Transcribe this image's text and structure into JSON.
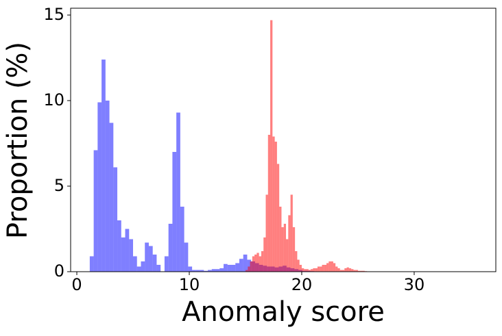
{
  "chart_data": {
    "type": "histogram",
    "xlabel": "Anomaly score",
    "ylabel": "Proportion (%)",
    "xlim": [
      -0.55,
      37.26
    ],
    "ylim": [
      0,
      15.4
    ],
    "xticks": [
      0,
      10,
      20,
      30
    ],
    "yticks": [
      0,
      5,
      10,
      15
    ],
    "alpha": 0.5,
    "series": [
      {
        "color": "blue",
        "bins": [
          1.15,
          1.5,
          1.85,
          2.2,
          2.55,
          2.9,
          3.25,
          3.6,
          3.95,
          4.3,
          4.65,
          5,
          5.35,
          5.7,
          6.05,
          6.4,
          6.75,
          7.1,
          7.45,
          7.8,
          8.15,
          8.5,
          8.85,
          9.2,
          9.55,
          9.9,
          10.25,
          10.6,
          10.95,
          11.3,
          11.65,
          12,
          12.35,
          12.7,
          13.05,
          13.4,
          13.75,
          14.1,
          14.45,
          14.8,
          15.15,
          15.5,
          15.85,
          16.2,
          16.55,
          16.9,
          17.25,
          17.6,
          17.95,
          18.3,
          18.65,
          19,
          19.35,
          19.7,
          20.05,
          20.4,
          20.75,
          21.1
        ],
        "values": [
          0.9,
          7.1,
          9.9,
          12.4,
          10.0,
          8.7,
          6.1,
          3.0,
          2.0,
          2.5,
          1.9,
          0.9,
          0.3,
          0.6,
          1.7,
          1.5,
          1.0,
          0.4,
          0,
          0.9,
          2.8,
          7.0,
          9.3,
          3.8,
          1.7,
          0.3,
          0.1,
          0.1,
          0.1,
          0.05,
          0.1,
          0.15,
          0.15,
          0.2,
          0.45,
          0.4,
          0.4,
          0.5,
          0.75,
          1.0,
          0.7,
          0.6,
          0.5,
          0.4,
          0.35,
          0.3,
          0.3,
          0.25,
          0.3,
          0.35,
          0.25,
          0.2,
          0.15,
          0.1,
          0.05,
          0.05,
          0.03
        ]
      },
      {
        "color": "red",
        "bins": [
          15,
          15.2,
          15.4,
          15.6,
          15.8,
          16,
          16.2,
          16.4,
          16.6,
          16.8,
          17,
          17.2,
          17.4,
          17.6,
          17.8,
          18,
          18.2,
          18.4,
          18.6,
          18.8,
          19,
          19.2,
          19.4,
          19.6,
          19.8,
          20,
          20.2,
          20.4,
          20.6,
          20.8,
          21,
          21.2,
          21.4,
          21.6,
          21.8,
          22,
          22.2,
          22.4,
          22.6,
          22.8,
          23,
          23.2,
          23.4,
          23.6,
          23.8,
          24,
          24.2,
          24.4,
          24.6,
          24.8,
          25,
          25.2,
          25.4,
          25.6,
          25.8
        ],
        "values": [
          0.1,
          0.3,
          0.6,
          0.9,
          1.0,
          1.1,
          0.9,
          1.2,
          2.0,
          4.5,
          8.0,
          14.7,
          7.9,
          7.6,
          6.3,
          3.8,
          2.6,
          2.8,
          1.9,
          3.3,
          4.5,
          2.6,
          1.2,
          0.7,
          0.4,
          0.2,
          0.15,
          0.15,
          0.1,
          0.15,
          0.2,
          0.2,
          0.3,
          0.3,
          0.4,
          0.4,
          0.5,
          0.6,
          0.6,
          0.5,
          0.3,
          0.2,
          0.1,
          0.1,
          0.2,
          0.25,
          0.2,
          0.15,
          0.1,
          0.1,
          0.05,
          0.05,
          0.05,
          0.03
        ]
      }
    ]
  }
}
